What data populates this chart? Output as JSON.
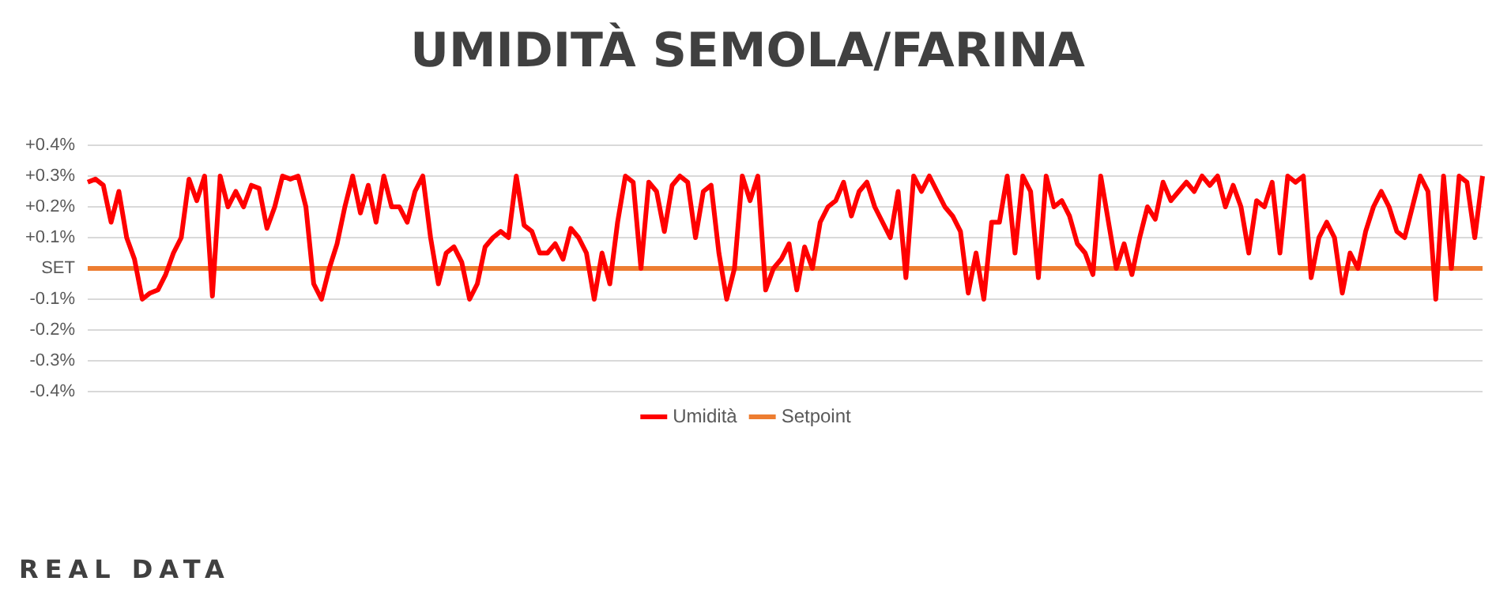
{
  "chart_data": {
    "type": "line",
    "title": "UMIDITÀ SEMOLA/FARINA",
    "annotations": [
      "REAL DATA"
    ],
    "categories": [
      null,
      null,
      null,
      null,
      null,
      null,
      null,
      null,
      null,
      null,
      null,
      null,
      null,
      null,
      null,
      null,
      null,
      null,
      null,
      null,
      null,
      null,
      null,
      null,
      null,
      null,
      null,
      null,
      null,
      null,
      null,
      null,
      null,
      null,
      null,
      null,
      null,
      null,
      null,
      null,
      null,
      null,
      null,
      null,
      null,
      null,
      null,
      null,
      null,
      null,
      null,
      null,
      null,
      null,
      null,
      null,
      null,
      null,
      null,
      null,
      null,
      null,
      null,
      null,
      null,
      null,
      null,
      null,
      null,
      null,
      null,
      null,
      null,
      null,
      null,
      null,
      null,
      null,
      null,
      null,
      null,
      null,
      null,
      null,
      null,
      null,
      null,
      null,
      null,
      null,
      null,
      null,
      null,
      null,
      null,
      null,
      null,
      null,
      null,
      null,
      null,
      null,
      null,
      null,
      null,
      null,
      null,
      null,
      null,
      null,
      null,
      null,
      null,
      null,
      null,
      null,
      null,
      null,
      null,
      null,
      null,
      null,
      null,
      null,
      null,
      null,
      null,
      null,
      null,
      null,
      null,
      null,
      null,
      null,
      null,
      null,
      null,
      null,
      null,
      null,
      null,
      null,
      null,
      null,
      null,
      null,
      null,
      null,
      null,
      null,
      null,
      null,
      null,
      null,
      null,
      null,
      null,
      null,
      null,
      null,
      null,
      null,
      null,
      null,
      null,
      null,
      null,
      null,
      null,
      null,
      null,
      null,
      null,
      null,
      null,
      null,
      null,
      null,
      null,
      null
    ],
    "series": [
      {
        "name": "Umidità",
        "color": "#ff0000",
        "values": [
          0.28,
          0.29,
          0.27,
          0.15,
          0.25,
          0.1,
          0.03,
          -0.1,
          -0.08,
          -0.07,
          -0.02,
          0.05,
          0.1,
          0.29,
          0.22,
          0.3,
          -0.09,
          0.3,
          0.2,
          0.25,
          0.2,
          0.27,
          0.26,
          0.13,
          0.2,
          0.3,
          0.29,
          0.3,
          0.2,
          -0.05,
          -0.1,
          0.0,
          0.08,
          0.2,
          0.3,
          0.18,
          0.27,
          0.15,
          0.3,
          0.2,
          0.2,
          0.15,
          0.25,
          0.3,
          0.1,
          -0.05,
          0.05,
          0.07,
          0.02,
          -0.1,
          -0.05,
          0.07,
          0.1,
          0.12,
          0.1,
          0.3,
          0.14,
          0.12,
          0.05,
          0.05,
          0.08,
          0.03,
          0.13,
          0.1,
          0.05,
          -0.1,
          0.05,
          -0.05,
          0.15,
          0.3,
          0.28,
          0.0,
          0.28,
          0.25,
          0.12,
          0.27,
          0.3,
          0.28,
          0.1,
          0.25,
          0.27,
          0.05,
          -0.1,
          0.0,
          0.3,
          0.22,
          0.3,
          -0.07,
          0.0,
          0.03,
          0.08,
          -0.07,
          0.07,
          0.0,
          0.15,
          0.2,
          0.22,
          0.28,
          0.17,
          0.25,
          0.28,
          0.2,
          0.15,
          0.1,
          0.25,
          -0.03,
          0.3,
          0.25,
          0.3,
          0.25,
          0.2,
          0.17,
          0.12,
          -0.08,
          0.05,
          -0.1,
          0.15,
          0.15,
          0.3,
          0.05,
          0.3,
          0.25,
          -0.03,
          0.3,
          0.2,
          0.22,
          0.17,
          0.08,
          0.05,
          -0.02,
          0.3,
          0.15,
          0.0,
          0.08,
          -0.02,
          0.1,
          0.2,
          0.16,
          0.28,
          0.22,
          0.25,
          0.28,
          0.25,
          0.3,
          0.27,
          0.3,
          0.2,
          0.27,
          0.2,
          0.05,
          0.22,
          0.2,
          0.28,
          0.05,
          0.3,
          0.28,
          0.3,
          -0.03,
          0.1,
          0.15,
          0.1,
          -0.08,
          0.05,
          0.0,
          0.12,
          0.2,
          0.25,
          0.2,
          0.12,
          0.1,
          0.2,
          0.3,
          0.25,
          -0.1,
          0.3,
          0.0,
          0.3,
          0.28,
          0.1,
          0.3
        ]
      },
      {
        "name": "Setpoint",
        "color": "#ed7d31",
        "values": [
          0,
          0,
          0,
          0,
          0,
          0,
          0,
          0,
          0,
          0,
          0,
          0,
          0,
          0,
          0,
          0,
          0,
          0,
          0,
          0,
          0,
          0,
          0,
          0,
          0,
          0,
          0,
          0,
          0,
          0,
          0,
          0,
          0,
          0,
          0,
          0,
          0,
          0,
          0,
          0,
          0,
          0,
          0,
          0,
          0,
          0,
          0,
          0,
          0,
          0,
          0,
          0,
          0,
          0,
          0,
          0,
          0,
          0,
          0,
          0,
          0,
          0,
          0,
          0,
          0,
          0,
          0,
          0,
          0,
          0,
          0,
          0,
          0,
          0,
          0,
          0,
          0,
          0,
          0,
          0,
          0,
          0,
          0,
          0,
          0,
          0,
          0,
          0,
          0,
          0,
          0,
          0,
          0,
          0,
          0,
          0,
          0,
          0,
          0,
          0,
          0,
          0,
          0,
          0,
          0,
          0,
          0,
          0,
          0,
          0,
          0,
          0,
          0,
          0,
          0,
          0,
          0,
          0,
          0,
          0,
          0,
          0,
          0,
          0,
          0,
          0,
          0,
          0,
          0,
          0,
          0,
          0,
          0,
          0,
          0,
          0,
          0,
          0,
          0,
          0,
          0,
          0,
          0,
          0,
          0,
          0,
          0,
          0,
          0,
          0,
          0,
          0,
          0,
          0,
          0,
          0,
          0,
          0,
          0,
          0,
          0,
          0,
          0,
          0,
          0,
          0,
          0,
          0,
          0,
          0,
          0,
          0,
          0,
          0,
          0,
          0,
          0,
          0,
          0,
          0
        ]
      }
    ],
    "ylim": [
      -0.4,
      0.4
    ],
    "yticks": [
      {
        "value": -0.4,
        "label": "-0.4%"
      },
      {
        "value": -0.3,
        "label": "-0.3%"
      },
      {
        "value": -0.2,
        "label": "-0.2%"
      },
      {
        "value": -0.1,
        "label": "-0.1%"
      },
      {
        "value": 0,
        "label": "SET"
      },
      {
        "value": 0.1,
        "label": "+0.1%"
      },
      {
        "value": 0.2,
        "label": "+0.2%"
      },
      {
        "value": 0.3,
        "label": "+0.3%"
      },
      {
        "value": 0.4,
        "label": "+0.4%"
      }
    ],
    "grid": "y",
    "legend": "bottom",
    "marker": "none",
    "line_style": "solid"
  }
}
